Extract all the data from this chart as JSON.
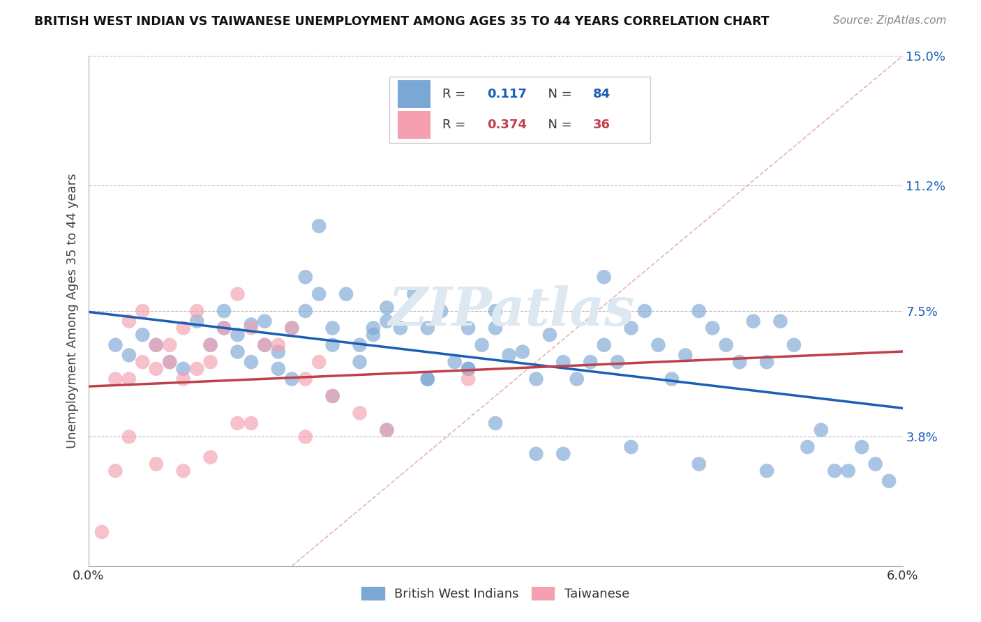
{
  "title": "BRITISH WEST INDIAN VS TAIWANESE UNEMPLOYMENT AMONG AGES 35 TO 44 YEARS CORRELATION CHART",
  "source": "Source: ZipAtlas.com",
  "ylabel": "Unemployment Among Ages 35 to 44 years",
  "xlim": [
    0,
    0.06
  ],
  "ylim": [
    0,
    0.15
  ],
  "yticks_right": [
    0.038,
    0.075,
    0.112,
    0.15
  ],
  "yticklabels_right": [
    "3.8%",
    "7.5%",
    "11.2%",
    "15.0%"
  ],
  "blue_color": "#7BA7D4",
  "pink_color": "#F4A0B0",
  "blue_line_color": "#1A5FB4",
  "pink_line_color": "#C0404A",
  "diag_line_color": "#E0909A",
  "r_value_blue_color": "#1A5FB4",
  "r_value_pink_color": "#C0404A",
  "watermark": "ZIPatlas",
  "legend_label_1": "British West Indians",
  "legend_label_2": "Taiwanese",
  "blue_R": "0.117",
  "blue_N": "84",
  "pink_R": "0.374",
  "pink_N": "36"
}
